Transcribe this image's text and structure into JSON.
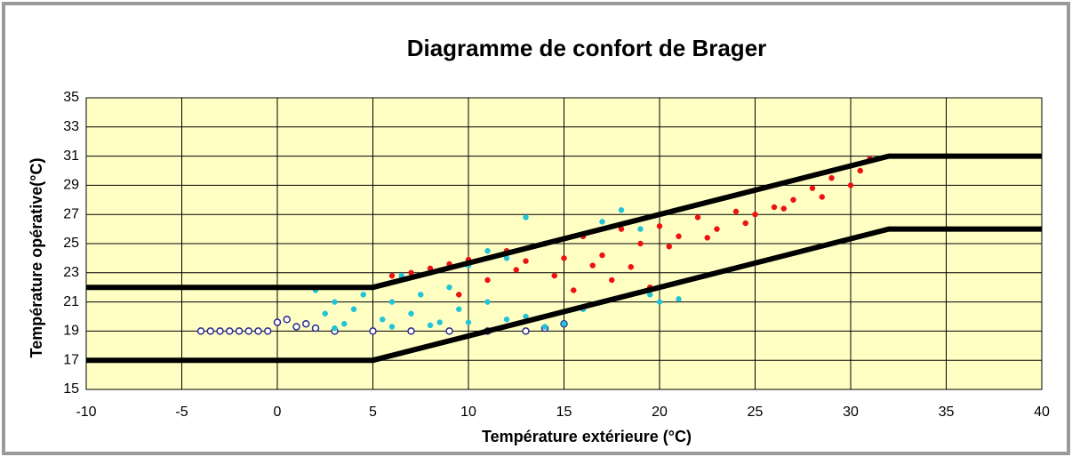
{
  "chart_data": {
    "type": "scatter",
    "title": "Diagramme de confort de Brager",
    "x_label": "Température extérieure (°C)",
    "y_label": "Température opérative(°C)",
    "xlim": [
      -10,
      40
    ],
    "ylim": [
      15,
      35
    ],
    "xticks": [
      -10,
      -5,
      0,
      5,
      10,
      15,
      20,
      25,
      30,
      35,
      40
    ],
    "yticks": [
      15,
      17,
      19,
      21,
      23,
      25,
      27,
      29,
      31,
      33,
      35
    ],
    "grid": true,
    "background": "#ffffc4",
    "series": [
      {
        "type": "scatter",
        "marker": "open",
        "color": "#2a2a8c",
        "x": [
          -4,
          -3.5,
          -3,
          -2.5,
          -2,
          -1.5,
          -1,
          -0.5,
          0,
          0.5,
          1,
          1.5,
          2,
          3,
          5,
          7,
          9,
          11,
          13,
          14,
          15
        ],
        "values": [
          19,
          19,
          19,
          19,
          19,
          19,
          19,
          19,
          19.6,
          19.8,
          19.3,
          19.5,
          19.2,
          19,
          19,
          19,
          19,
          19,
          19,
          19.2,
          19.5
        ]
      },
      {
        "type": "scatter",
        "marker": "filled",
        "color": "#22c4d8",
        "x": [
          2,
          2.5,
          3,
          3.5,
          4,
          4.5,
          5,
          5.5,
          6,
          6.5,
          7,
          7.5,
          8,
          8.5,
          9,
          9.5,
          10,
          11,
          12,
          13,
          14,
          15,
          16,
          17,
          18,
          19,
          20,
          21,
          3,
          6,
          8,
          10,
          12,
          14,
          16,
          19.5,
          13,
          11
        ],
        "values": [
          21.8,
          20.2,
          21,
          19.5,
          20.5,
          21.5,
          22,
          19.8,
          21,
          22.8,
          20.2,
          21.5,
          23,
          19.6,
          22,
          20.5,
          23.5,
          21,
          24,
          20,
          25,
          19.5,
          25.5,
          26.5,
          27.3,
          26,
          21,
          21.2,
          19.2,
          19.3,
          19.4,
          19.6,
          19.8,
          19.3,
          20.5,
          21.5,
          26.8,
          24.5
        ]
      },
      {
        "type": "scatter",
        "marker": "filled",
        "color": "#ee1111",
        "x": [
          6,
          7,
          8,
          9,
          10,
          11,
          12,
          13,
          14,
          15,
          16,
          17,
          18,
          19,
          20,
          21,
          22,
          23,
          24,
          25,
          26,
          27,
          28,
          29,
          30,
          31,
          12.5,
          14.5,
          16.5,
          18.5,
          20.5,
          22.5,
          24.5,
          26.5,
          28.5,
          30.5,
          9.5,
          15.5,
          17.5,
          19.5
        ],
        "values": [
          22.8,
          23,
          23.3,
          23.6,
          23.9,
          22.5,
          24.5,
          23.8,
          25,
          24,
          25.5,
          24.2,
          26,
          25,
          26.2,
          25.5,
          26.8,
          26,
          27.2,
          27,
          27.5,
          28,
          28.8,
          29.5,
          29,
          30.8,
          23.2,
          22.8,
          23.5,
          23.4,
          24.8,
          25.4,
          26.4,
          27.4,
          28.2,
          30,
          21.5,
          21.8,
          22.5,
          22
        ]
      },
      {
        "type": "line",
        "color": "#000000",
        "x": [
          -10,
          5,
          32,
          40
        ],
        "values": [
          22,
          22,
          31,
          31
        ]
      },
      {
        "type": "line",
        "color": "#000000",
        "x": [
          -10,
          5,
          32,
          40
        ],
        "values": [
          17,
          17,
          26,
          26
        ]
      }
    ]
  }
}
